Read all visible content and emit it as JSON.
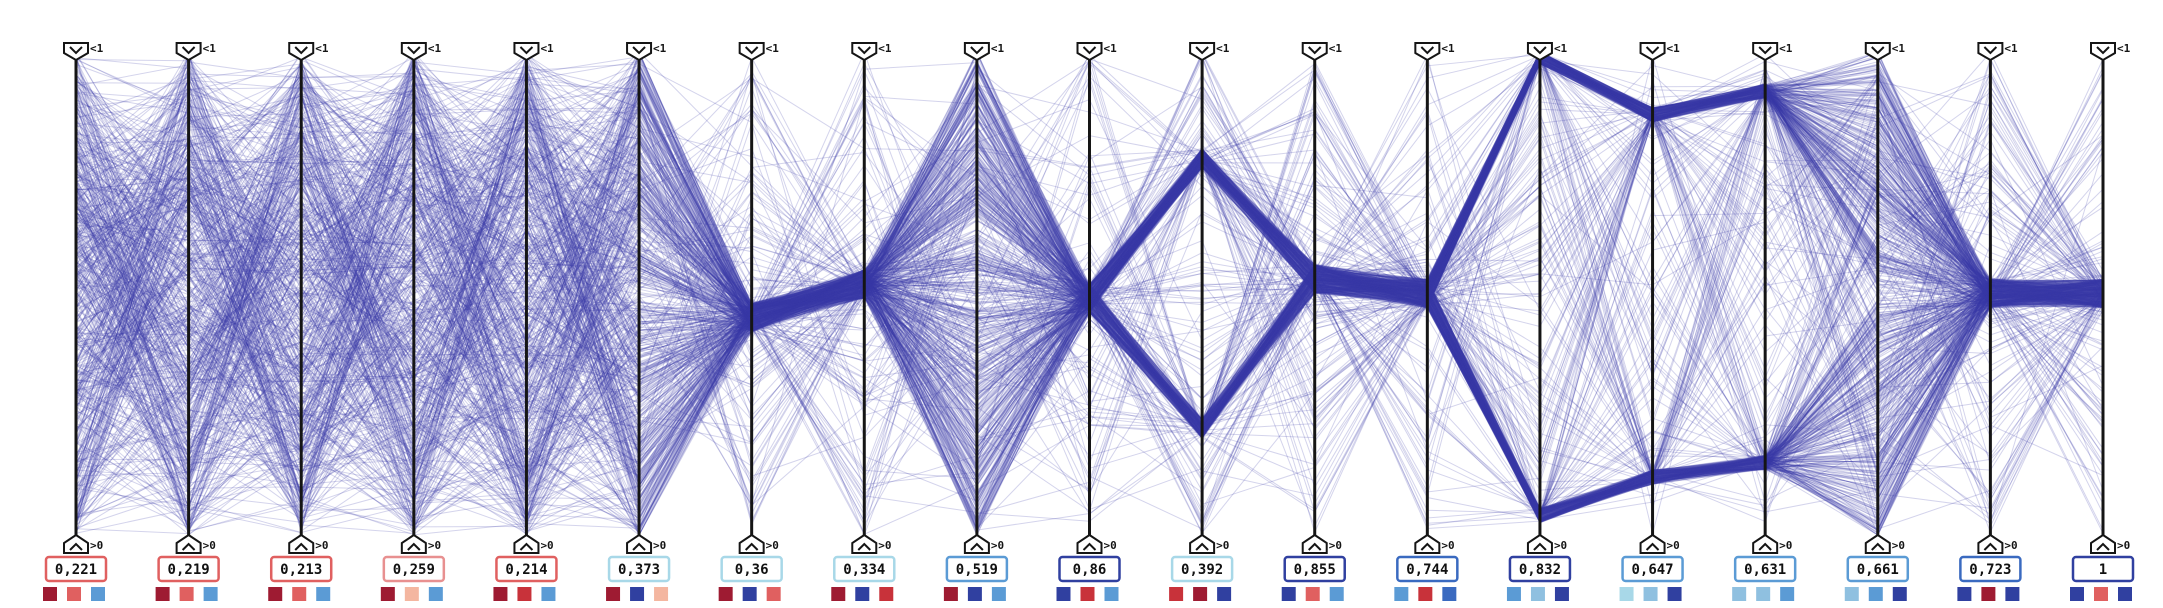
{
  "chart_data": {
    "type": "parallel-coordinates",
    "line_color": "#3a3aa8",
    "axis_max_label": "<1",
    "axis_min_label": ">0",
    "axes": [
      {
        "value": "0,221",
        "frame": "#e06060",
        "swatches": [
          "#9e1b32",
          "#e06060",
          "#5b9bd5"
        ]
      },
      {
        "value": "0,219",
        "frame": "#e06060",
        "swatches": [
          "#9e1b32",
          "#e06060",
          "#5b9bd5"
        ]
      },
      {
        "value": "0,213",
        "frame": "#e06060",
        "swatches": [
          "#9e1b32",
          "#e06060",
          "#5b9bd5"
        ]
      },
      {
        "value": "0,259",
        "frame": "#e89090",
        "swatches": [
          "#9e1b32",
          "#f4b6a0",
          "#5b9bd5"
        ]
      },
      {
        "value": "0,214",
        "frame": "#e06060",
        "swatches": [
          "#9e1b32",
          "#c8323a",
          "#5b9bd5"
        ]
      },
      {
        "value": "0,373",
        "frame": "#a8d8e8",
        "swatches": [
          "#9e1b32",
          "#3040a0",
          "#f4b6a0"
        ]
      },
      {
        "value": "0,36",
        "frame": "#a8d8e8",
        "swatches": [
          "#9e1b32",
          "#3040a0",
          "#e06060"
        ]
      },
      {
        "value": "0,334",
        "frame": "#a8d8e8",
        "swatches": [
          "#9e1b32",
          "#3040a0",
          "#c8323a"
        ]
      },
      {
        "value": "0,519",
        "frame": "#5b9bd5",
        "swatches": [
          "#9e1b32",
          "#3040a0",
          "#5b9bd5"
        ]
      },
      {
        "value": "0,86",
        "frame": "#3040a0",
        "swatches": [
          "#3040a0",
          "#c8323a",
          "#5b9bd5"
        ]
      },
      {
        "value": "0,392",
        "frame": "#a8d8e8",
        "swatches": [
          "#c8323a",
          "#9e1b32",
          "#3040a0"
        ]
      },
      {
        "value": "0,855",
        "frame": "#3040a0",
        "swatches": [
          "#3040a0",
          "#e06060",
          "#5b9bd5"
        ]
      },
      {
        "value": "0,744",
        "frame": "#3a6ac0",
        "swatches": [
          "#5b9bd5",
          "#c8323a",
          "#3a6ac0"
        ]
      },
      {
        "value": "0,832",
        "frame": "#3040a0",
        "swatches": [
          "#5b9bd5",
          "#8fc0e0",
          "#3040a0"
        ]
      },
      {
        "value": "0,647",
        "frame": "#5b9bd5",
        "swatches": [
          "#a8d8e8",
          "#8fc0e0",
          "#3040a0"
        ]
      },
      {
        "value": "0,631",
        "frame": "#5b9bd5",
        "swatches": [
          "#8fc0e0",
          "#8fc0e0",
          "#5b9bd5"
        ]
      },
      {
        "value": "0,661",
        "frame": "#5b9bd5",
        "swatches": [
          "#8fc0e0",
          "#5b9bd5",
          "#3040a0"
        ]
      },
      {
        "value": "0,723",
        "frame": "#3a6ac0",
        "swatches": [
          "#3040a0",
          "#9e1b32",
          "#3040a0"
        ]
      },
      {
        "value": "1",
        "frame": "#3040a0",
        "swatches": [
          "#3040a0",
          "#e06060",
          "#3040a0"
        ]
      }
    ]
  }
}
